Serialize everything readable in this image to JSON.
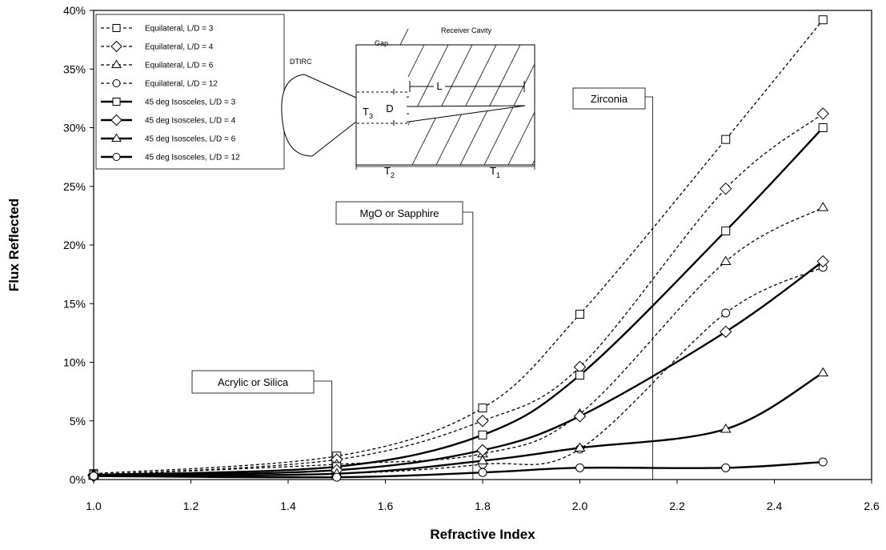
{
  "chart_data": {
    "type": "line",
    "title": "",
    "xlabel": "Refractive Index",
    "ylabel": "Flux Reflected",
    "xlim": [
      1.0,
      2.6
    ],
    "ylim": [
      0,
      40
    ],
    "x_ticks": [
      "1.0",
      "1.2",
      "1.4",
      "1.6",
      "1.8",
      "2.0",
      "2.2",
      "2.4",
      "2.6"
    ],
    "y_ticks": [
      "0%",
      "5%",
      "10%",
      "15%",
      "20%",
      "25%",
      "30%",
      "35%",
      "40%"
    ],
    "x": [
      1.0,
      1.5,
      1.8,
      2.0,
      2.3,
      2.5
    ],
    "grid": false,
    "legend_position": "top-left",
    "series": [
      {
        "name": "Equilateral, L/D = 3",
        "style": "dashed",
        "marker": "square",
        "values": [
          0.5,
          2.0,
          6.1,
          14.1,
          29.0,
          39.2
        ]
      },
      {
        "name": "Equilateral, L/D = 4",
        "style": "dashed",
        "marker": "diamond",
        "values": [
          0.4,
          1.7,
          5.0,
          9.6,
          24.8,
          31.2
        ]
      },
      {
        "name": "Equilateral, L/D = 6",
        "style": "dashed",
        "marker": "triangle",
        "values": [
          0.4,
          1.3,
          2.2,
          5.6,
          18.6,
          23.2
        ]
      },
      {
        "name": "Equilateral, L/D = 12",
        "style": "dashed",
        "marker": "circle",
        "values": [
          0.3,
          0.5,
          1.3,
          2.6,
          14.2,
          18.1
        ]
      },
      {
        "name": "45 deg Isosceles, L/D = 3",
        "style": "solid",
        "marker": "square",
        "values": [
          0.4,
          1.1,
          3.8,
          8.9,
          21.2,
          30.0
        ]
      },
      {
        "name": "45 deg Isosceles, L/D = 4",
        "style": "solid",
        "marker": "diamond",
        "values": [
          0.3,
          0.8,
          2.5,
          5.4,
          12.6,
          18.6
        ]
      },
      {
        "name": "45 deg Isosceles, L/D = 6",
        "style": "solid",
        "marker": "triangle",
        "values": [
          0.3,
          0.5,
          1.6,
          2.7,
          4.3,
          9.1
        ]
      },
      {
        "name": "45 deg Isosceles, L/D = 12",
        "style": "solid",
        "marker": "circle",
        "values": [
          0.3,
          0.2,
          0.6,
          1.0,
          1.0,
          1.5
        ]
      }
    ],
    "annotations": [
      {
        "text": "Acrylic or Silica",
        "x": 1.49
      },
      {
        "text": "MgO or Sapphire",
        "x": 1.78
      },
      {
        "text": "Zirconia",
        "x": 2.15
      }
    ]
  },
  "inset": {
    "labels": {
      "receiver": "Receiver Cavity",
      "gap": "Gap",
      "dtirc": "DTIRC",
      "L": "L",
      "D": "D",
      "T3": "T",
      "T3_sub": "3",
      "T2": "T",
      "T2_sub": "2",
      "T1": "T",
      "T1_sub": "1"
    }
  }
}
